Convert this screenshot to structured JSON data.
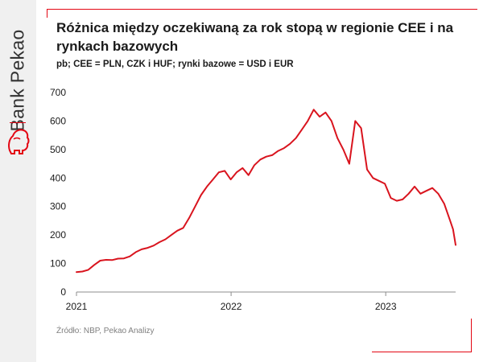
{
  "brand": {
    "name": "Bank Pekao"
  },
  "header": {
    "title": "Różnica między oczekiwaną za rok stopą w regionie CEE i na rynkach bazowych",
    "subtitle": "pb; CEE = PLN, CZK i HUF; rynki bazowe = USD i EUR"
  },
  "footer": {
    "source": "Źródło: NBP, Pekao Analizy"
  },
  "colors": {
    "line": "#d9141e",
    "accent": "#e30613",
    "sidebar": "#f0f0f0"
  },
  "chart_data": {
    "type": "line",
    "title": "Różnica między oczekiwaną za rok stopą w regionie CEE i na rynkach bazowych",
    "subtitle": "pb; CEE = PLN, CZK i HUF; rynki bazowe = USD i EUR",
    "xlabel": "",
    "ylabel": "",
    "ylim": [
      0,
      700
    ],
    "yticks": [
      "0",
      "100",
      "200",
      "300",
      "400",
      "500",
      "600",
      "700"
    ],
    "x_tick_labels": [
      "2021",
      "2022",
      "2023"
    ],
    "x_tick_values": [
      "2021-01-01",
      "2022-01-01",
      "2023-01-01"
    ],
    "xlim": [
      "2021-01-01",
      "2023-06-15"
    ],
    "grid": false,
    "legend": "none",
    "series": [
      {
        "color": "#d9141e",
        "points": [
          [
            "2021-01-01",
            70
          ],
          [
            "2021-01-15",
            72
          ],
          [
            "2021-01-29",
            78
          ],
          [
            "2021-02-12",
            95
          ],
          [
            "2021-02-26",
            110
          ],
          [
            "2021-03-12",
            113
          ],
          [
            "2021-03-26",
            112
          ],
          [
            "2021-04-09",
            117
          ],
          [
            "2021-04-23",
            118
          ],
          [
            "2021-05-07",
            125
          ],
          [
            "2021-05-21",
            140
          ],
          [
            "2021-06-04",
            150
          ],
          [
            "2021-06-18",
            155
          ],
          [
            "2021-07-02",
            163
          ],
          [
            "2021-07-16",
            175
          ],
          [
            "2021-07-30",
            185
          ],
          [
            "2021-08-13",
            200
          ],
          [
            "2021-08-27",
            215
          ],
          [
            "2021-09-10",
            225
          ],
          [
            "2021-09-24",
            260
          ],
          [
            "2021-10-08",
            300
          ],
          [
            "2021-10-22",
            340
          ],
          [
            "2021-11-05",
            370
          ],
          [
            "2021-11-19",
            395
          ],
          [
            "2021-12-03",
            420
          ],
          [
            "2021-12-17",
            425
          ],
          [
            "2021-12-31",
            395
          ],
          [
            "2022-01-14",
            420
          ],
          [
            "2022-01-28",
            435
          ],
          [
            "2022-02-11",
            410
          ],
          [
            "2022-02-25",
            445
          ],
          [
            "2022-03-11",
            465
          ],
          [
            "2022-03-25",
            475
          ],
          [
            "2022-04-08",
            480
          ],
          [
            "2022-04-22",
            495
          ],
          [
            "2022-05-06",
            505
          ],
          [
            "2022-05-20",
            520
          ],
          [
            "2022-06-03",
            540
          ],
          [
            "2022-06-17",
            570
          ],
          [
            "2022-07-01",
            600
          ],
          [
            "2022-07-15",
            640
          ],
          [
            "2022-07-29",
            615
          ],
          [
            "2022-08-12",
            630
          ],
          [
            "2022-08-26",
            600
          ],
          [
            "2022-09-09",
            540
          ],
          [
            "2022-09-23",
            500
          ],
          [
            "2022-10-07",
            450
          ],
          [
            "2022-10-21",
            600
          ],
          [
            "2022-11-04",
            575
          ],
          [
            "2022-11-18",
            430
          ],
          [
            "2022-12-02",
            400
          ],
          [
            "2022-12-16",
            390
          ],
          [
            "2022-12-30",
            380
          ],
          [
            "2023-01-13",
            330
          ],
          [
            "2023-01-27",
            320
          ],
          [
            "2023-02-10",
            325
          ],
          [
            "2023-02-24",
            345
          ],
          [
            "2023-03-10",
            370
          ],
          [
            "2023-03-24",
            345
          ],
          [
            "2023-04-07",
            355
          ],
          [
            "2023-04-21",
            365
          ],
          [
            "2023-05-05",
            345
          ],
          [
            "2023-05-19",
            310
          ],
          [
            "2023-06-02",
            250
          ],
          [
            "2023-06-09",
            220
          ],
          [
            "2023-06-15",
            165
          ]
        ]
      }
    ]
  }
}
